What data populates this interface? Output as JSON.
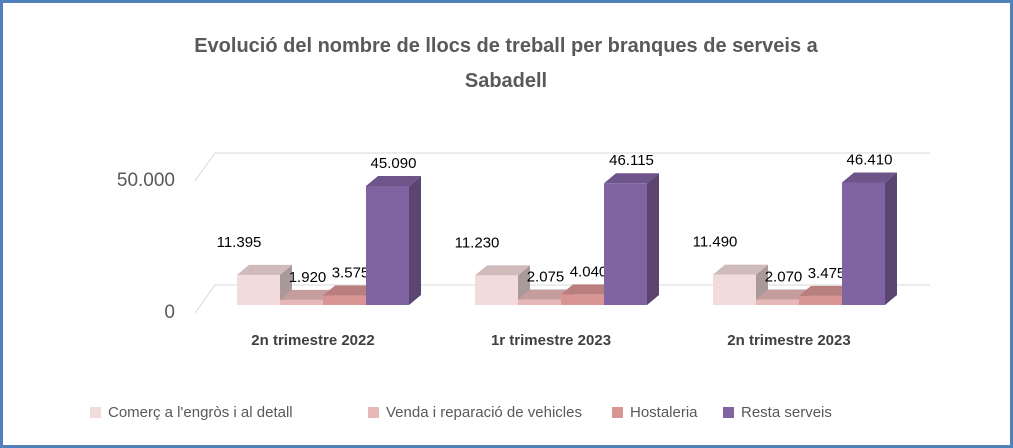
{
  "chart_data": {
    "type": "bar3d",
    "title": "Evolució del nombre de llocs de treball per branques  de serveis a Sabadell",
    "categories": [
      "2n trimestre 2022",
      "1r trimestre 2023",
      "2n trimestre 2023"
    ],
    "series": [
      {
        "name": "Comerç a l'engròs i al detall",
        "color": "#f2dcdb",
        "values": [
          11395,
          11230,
          11490
        ],
        "value_labels": [
          "11.395",
          "11.230",
          "11.490"
        ]
      },
      {
        "name": "Venda i reparació de vehicles",
        "color": "#e6b9b8",
        "values": [
          1920,
          2075,
          2070
        ],
        "value_labels": [
          "1.920",
          "2.075",
          "2.070"
        ]
      },
      {
        "name": "Hostaleria",
        "color": "#d99594",
        "values": [
          3575,
          4040,
          3475
        ],
        "value_labels": [
          "3.575",
          "4.040",
          "3.475"
        ]
      },
      {
        "name": "Resta serveis",
        "color": "#8064a2",
        "values": [
          45090,
          46115,
          46410
        ],
        "value_labels": [
          "45.090",
          "46.115",
          "46.410"
        ]
      }
    ],
    "ylim": [
      0,
      50000
    ],
    "yticks": [
      0,
      {
        "value": 50000,
        "label": "50.000"
      }
    ],
    "grid": true,
    "legend": "bottom"
  }
}
